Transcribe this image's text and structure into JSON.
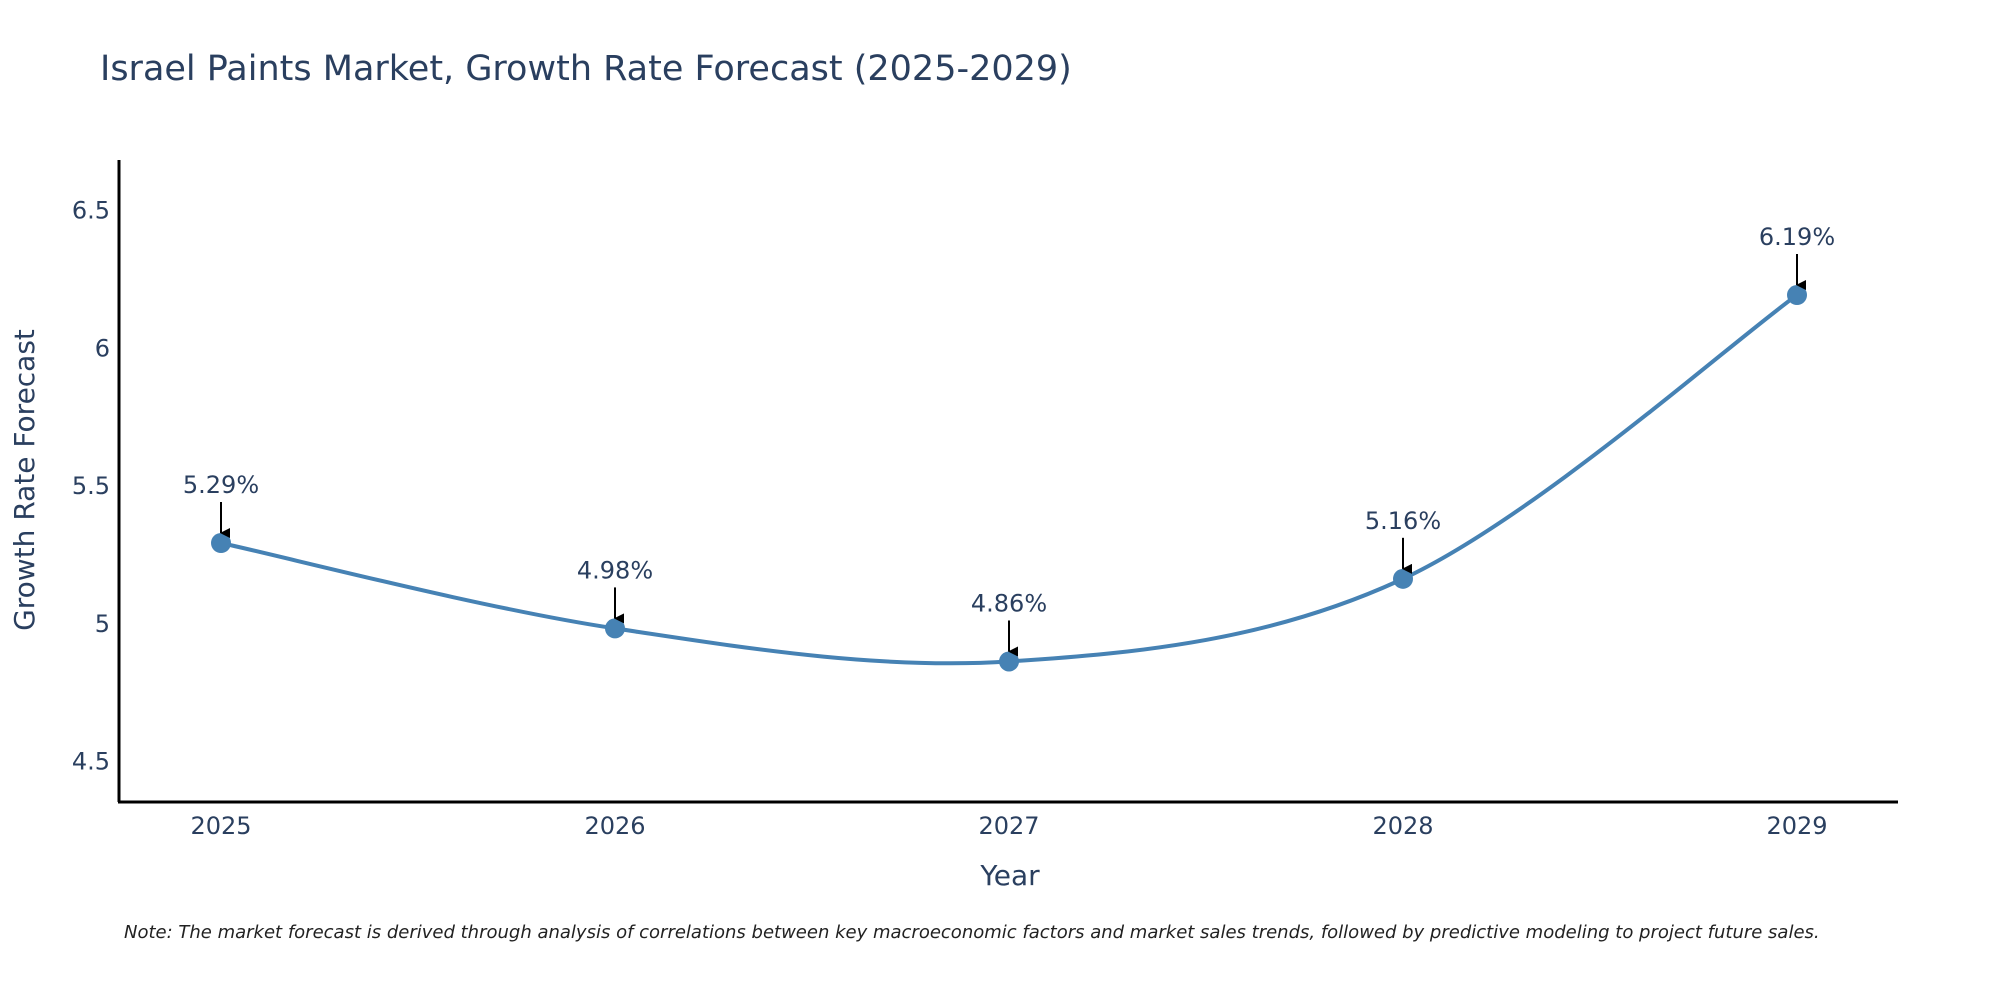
{
  "chart_data": {
    "type": "line",
    "title": "Israel Paints Market, Growth Rate Forecast (2025-2029)",
    "xlabel": "Year",
    "ylabel": "Growth Rate Forecast",
    "x": [
      "2025",
      "2026",
      "2027",
      "2028",
      "2029"
    ],
    "values": [
      5.29,
      4.98,
      4.86,
      5.16,
      6.19
    ],
    "data_labels": [
      "5.29%",
      "4.98%",
      "4.86%",
      "5.16%",
      "6.19%"
    ],
    "yticks": [
      4.5,
      5,
      5.5,
      6,
      6.5
    ],
    "ytick_labels": [
      "4.5",
      "5",
      "5.5",
      "6",
      "6.5"
    ],
    "ylim": [
      4.35,
      6.68
    ],
    "grid": false,
    "line_color": "#4682b4",
    "marker_color": "#4682b4",
    "note": "Note: The market forecast is derived through analysis of correlations between key macroeconomic factors and market sales trends, followed by predictive modeling to project future sales."
  }
}
